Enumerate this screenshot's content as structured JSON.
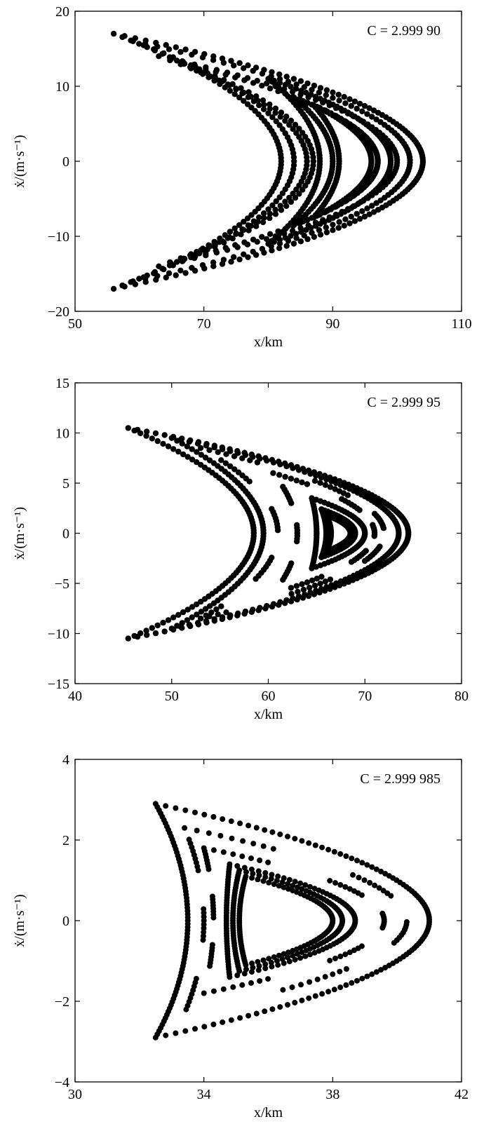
{
  "chart_data": [
    {
      "type": "scatter",
      "annotation": "C = 2.999 90",
      "xlabel": "x/km",
      "ylabel": "ẋ/(m·s⁻¹)",
      "xlim": [
        50,
        110
      ],
      "ylim": [
        -20,
        20
      ],
      "xticks": [
        50,
        70,
        90,
        110
      ],
      "yticks": [
        -20,
        -10,
        0,
        10,
        20
      ],
      "grid": false,
      "marker_color": "#000000",
      "series": [
        {
          "type": "crescent",
          "a": [
            56,
            17
          ],
          "b": [
            56,
            -17
          ],
          "outer": [
            104,
            0
          ],
          "inner": [
            82,
            0
          ],
          "count": 190
        },
        {
          "type": "crescent",
          "a": [
            59,
            16
          ],
          "b": [
            59,
            -16
          ],
          "outer": [
            102,
            0
          ],
          "inner": [
            84,
            0
          ],
          "count": 150
        },
        {
          "type": "crescent",
          "a": [
            63,
            14
          ],
          "b": [
            63,
            -14
          ],
          "outer": [
            100,
            0
          ],
          "inner": [
            86,
            0
          ],
          "count": 130
        },
        {
          "type": "crescent",
          "a": [
            67,
            13
          ],
          "b": [
            67,
            -13
          ],
          "outer": [
            97,
            0
          ],
          "inner": [
            87,
            0
          ],
          "count": 120
        },
        {
          "type": "crescent",
          "a": [
            80,
            11
          ],
          "b": [
            80,
            -11
          ],
          "outer": [
            99,
            0
          ],
          "inner": [
            88,
            0
          ],
          "count": 140
        },
        {
          "type": "crescent",
          "a": [
            84,
            8.5
          ],
          "b": [
            84,
            -8.5
          ],
          "outer": [
            97,
            0
          ],
          "inner": [
            90,
            0
          ],
          "count": 120
        },
        {
          "type": "crescent",
          "a": [
            87,
            7.5
          ],
          "b": [
            87,
            -7.5
          ],
          "outer": [
            96,
            0
          ],
          "inner": [
            91,
            0
          ],
          "count": 110
        }
      ]
    },
    {
      "type": "scatter",
      "annotation": "C = 2.999 95",
      "xlabel": "x/km",
      "ylabel": "ẋ/(m·s⁻¹)",
      "xlim": [
        40,
        80
      ],
      "ylim": [
        -15,
        15
      ],
      "xticks": [
        40,
        50,
        60,
        70,
        80
      ],
      "yticks": [
        -15,
        -10,
        -5,
        0,
        5,
        10,
        15
      ],
      "grid": false,
      "marker_color": "#000000",
      "series": [
        {
          "type": "crescent",
          "a": [
            45.5,
            10.5
          ],
          "b": [
            45.5,
            -10.5
          ],
          "outer": [
            74.5,
            0
          ],
          "inner": [
            58.5,
            0
          ],
          "count": 200
        },
        {
          "type": "crescent",
          "a": [
            50,
            9.5
          ],
          "b": [
            50,
            -9.5
          ],
          "outer": [
            73.5,
            0
          ],
          "inner": [
            59.5,
            0
          ],
          "count": 170
        },
        {
          "type": "crescent",
          "a": [
            53,
            8.5
          ],
          "b": [
            53,
            -8.5
          ],
          "outer": [
            72,
            0
          ],
          "inner": [
            61,
            0
          ],
          "count": 140,
          "dash": 8
        },
        {
          "type": "crescent",
          "a": [
            60.5,
            6
          ],
          "b": [
            60.5,
            -6
          ],
          "outer": [
            71,
            0
          ],
          "inner": [
            63,
            0
          ],
          "count": 110,
          "dash": 7
        },
        {
          "type": "crescent",
          "a": [
            64.5,
            3.5
          ],
          "b": [
            64.5,
            -3.5
          ],
          "outer": [
            70,
            0
          ],
          "inner": [
            65,
            0
          ],
          "count": 80
        },
        {
          "type": "crescent",
          "a": [
            65.5,
            2.4
          ],
          "b": [
            65.5,
            -2.4
          ],
          "outer": [
            69,
            0
          ],
          "inner": [
            66,
            0
          ],
          "count": 70
        },
        {
          "type": "crescent",
          "a": [
            66,
            1.8
          ],
          "b": [
            66,
            -1.8
          ],
          "outer": [
            68.5,
            0
          ],
          "inner": [
            66.5,
            0
          ],
          "count": 55
        }
      ]
    },
    {
      "type": "scatter",
      "annotation": "C = 2.999 985",
      "xlabel": "x/km",
      "ylabel": "ẋ/(m·s⁻¹)",
      "xlim": [
        30,
        42
      ],
      "ylim": [
        -4,
        4
      ],
      "xticks": [
        30,
        34,
        38,
        42
      ],
      "yticks": [
        -4,
        -2,
        0,
        2,
        4
      ],
      "grid": false,
      "marker_color": "#000000",
      "series": [
        {
          "type": "crescent",
          "a": [
            32.5,
            2.9
          ],
          "b": [
            32.5,
            -2.9
          ],
          "outer": [
            41,
            0
          ],
          "inner": [
            33.5,
            0
          ],
          "count": 180
        },
        {
          "type": "crescent",
          "a": [
            33.4,
            2.3
          ],
          "b": [
            33.4,
            -2.3
          ],
          "outer": [
            40.3,
            0
          ],
          "inner": [
            34,
            0
          ],
          "count": 120,
          "dash": 9
        },
        {
          "type": "crescent",
          "a": [
            34,
            1.8
          ],
          "b": [
            34,
            -1.8
          ],
          "outer": [
            39.6,
            0
          ],
          "inner": [
            34.3,
            0
          ],
          "count": 120,
          "dash": 8
        },
        {
          "type": "crescent",
          "a": [
            34.8,
            1.4
          ],
          "b": [
            34.8,
            -1.4
          ],
          "outer": [
            38.7,
            0
          ],
          "inner": [
            34.7,
            0
          ],
          "count": 110
        },
        {
          "type": "crescent",
          "a": [
            35.1,
            1.25
          ],
          "b": [
            35.1,
            -1.25
          ],
          "outer": [
            38.3,
            0
          ],
          "inner": [
            34.9,
            0
          ],
          "count": 100
        },
        {
          "type": "crescent",
          "a": [
            35.3,
            1.1
          ],
          "b": [
            35.3,
            -1.1
          ],
          "outer": [
            38,
            0
          ],
          "inner": [
            35.1,
            0
          ],
          "count": 95
        }
      ]
    }
  ]
}
